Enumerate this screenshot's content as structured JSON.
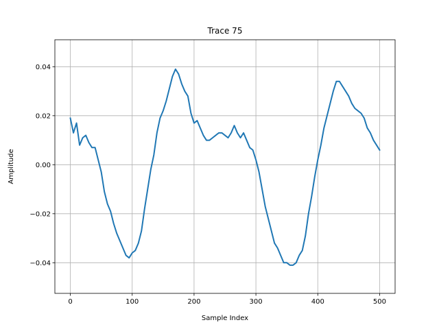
{
  "chart_data": {
    "type": "line",
    "title": "Trace 75",
    "xlabel": "Sample Index",
    "ylabel": "Amplitude",
    "xlim": [
      -25,
      525
    ],
    "ylim": [
      -0.0525,
      0.051
    ],
    "xticks": [
      0,
      100,
      200,
      300,
      400,
      500
    ],
    "xtick_labels": [
      "0",
      "100",
      "200",
      "300",
      "400",
      "500"
    ],
    "yticks": [
      -0.04,
      -0.02,
      0.0,
      0.02,
      0.04
    ],
    "ytick_labels": [
      "−0.04",
      "−0.02",
      "0.00",
      "0.02",
      "0.04"
    ],
    "grid": true,
    "legend": "none",
    "line_color": "#1f77b4",
    "series": [
      {
        "x": [
          0,
          5,
          10,
          15,
          20,
          25,
          30,
          35,
          40,
          45,
          50,
          55,
          60,
          65,
          70,
          75,
          80,
          85,
          90,
          95,
          100,
          105,
          110,
          115,
          120,
          125,
          130,
          135,
          140,
          145,
          150,
          155,
          160,
          165,
          170,
          175,
          180,
          185,
          190,
          195,
          200,
          205,
          210,
          215,
          220,
          225,
          230,
          235,
          240,
          245,
          250,
          255,
          260,
          265,
          270,
          275,
          280,
          285,
          290,
          295,
          300,
          305,
          310,
          315,
          320,
          325,
          330,
          335,
          340,
          345,
          350,
          355,
          360,
          365,
          370,
          375,
          380,
          385,
          390,
          395,
          400,
          405,
          410,
          415,
          420,
          425,
          430,
          435,
          440,
          445,
          450,
          455,
          460,
          465,
          470,
          475,
          480,
          485,
          490,
          495,
          500
        ],
        "y": [
          0.019,
          0.013,
          0.017,
          0.008,
          0.011,
          0.012,
          0.009,
          0.007,
          0.007,
          0.002,
          -0.003,
          -0.011,
          -0.016,
          -0.019,
          -0.024,
          -0.028,
          -0.031,
          -0.034,
          -0.037,
          -0.038,
          -0.036,
          -0.035,
          -0.032,
          -0.027,
          -0.018,
          -0.01,
          -0.002,
          0.004,
          0.013,
          0.019,
          0.022,
          0.026,
          0.031,
          0.036,
          0.039,
          0.037,
          0.033,
          0.03,
          0.028,
          0.021,
          0.017,
          0.018,
          0.015,
          0.012,
          0.01,
          0.01,
          0.011,
          0.012,
          0.013,
          0.013,
          0.012,
          0.011,
          0.013,
          0.016,
          0.013,
          0.011,
          0.013,
          0.01,
          0.007,
          0.006,
          0.002,
          -0.003,
          -0.01,
          -0.017,
          -0.022,
          -0.027,
          -0.032,
          -0.034,
          -0.037,
          -0.04,
          -0.04,
          -0.041,
          -0.041,
          -0.04,
          -0.037,
          -0.035,
          -0.029,
          -0.02,
          -0.013,
          -0.005,
          0.002,
          0.008,
          0.015,
          0.02,
          0.025,
          0.03,
          0.034,
          0.034,
          0.032,
          0.03,
          0.028,
          0.025,
          0.023,
          0.022,
          0.021,
          0.019,
          0.015,
          0.013,
          0.01,
          0.008,
          0.006
        ]
      }
    ]
  }
}
